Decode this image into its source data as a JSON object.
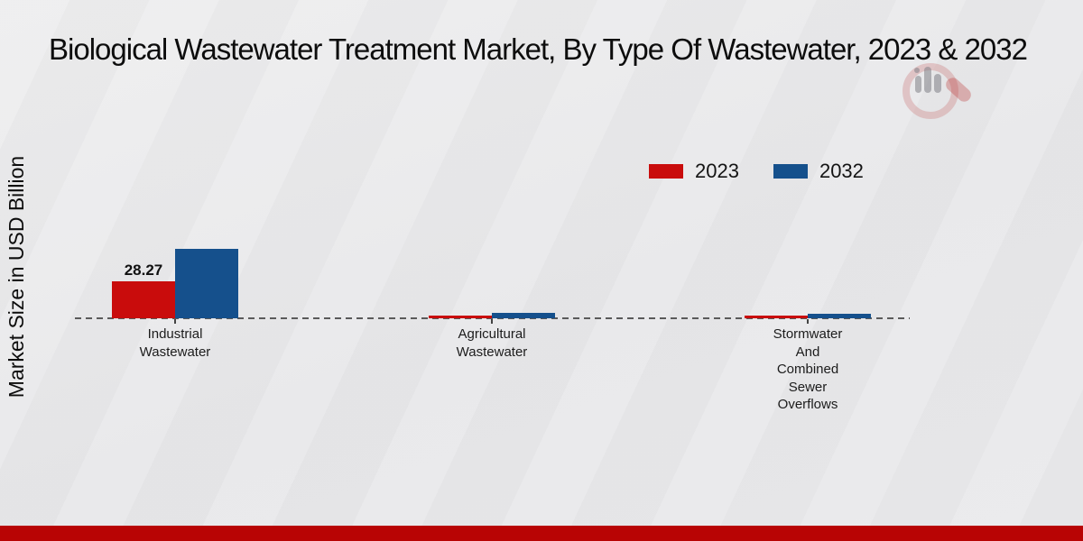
{
  "title": "Biological Wastewater Treatment Market, By Type Of Wastewater, 2023 & 2032",
  "y_axis_label": "Market Size in USD Billion",
  "category_labels": [
    "Industrial\nWastewater",
    "Agricultural\nWastewater",
    "Stormwater\nAnd\nCombined\nSewer\nOverflows"
  ],
  "colors": {
    "series_2023": "#c90c0c",
    "series_2032": "#15508c",
    "footer_accent": "#b80404",
    "baseline": "#5a5a5a",
    "background": "#e9e9eb"
  },
  "chart_data": {
    "type": "bar",
    "categories": [
      "Industrial Wastewater",
      "Agricultural Wastewater",
      "Stormwater And Combined Sewer Overflows"
    ],
    "series": [
      {
        "name": "2023",
        "color": "#c90c0c",
        "values": [
          28.27,
          2.1,
          1.8
        ]
      },
      {
        "name": "2032",
        "color": "#15508c",
        "values": [
          52.8,
          4.2,
          3.2
        ]
      }
    ],
    "annotations": [
      {
        "series": "2023",
        "category_index": 0,
        "text": "28.27"
      }
    ],
    "title": "Biological Wastewater Treatment Market, By Type Of Wastewater, 2023 & 2032",
    "xlabel": "",
    "ylabel": "Market Size in USD Billion",
    "ylim": [
      0,
      60
    ],
    "grid": false,
    "baseline_style": "dashed",
    "legend_position": "upper-right",
    "legend_entries": [
      "2023",
      "2032"
    ]
  }
}
